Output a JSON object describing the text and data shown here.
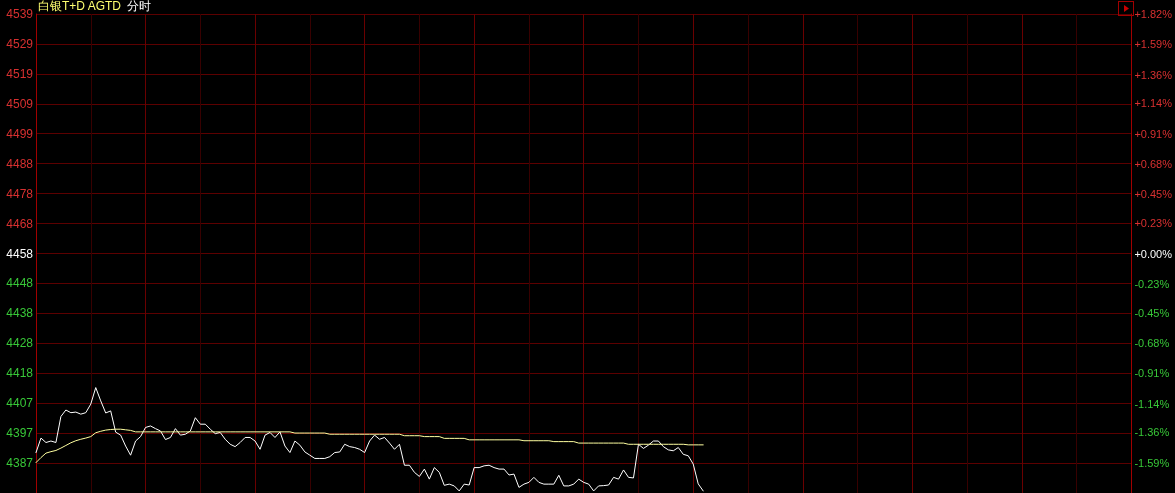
{
  "chart_data": {
    "type": "line",
    "title": "白银T+D AGTD",
    "subtitle": "分时",
    "categories": [
      null,
      null,
      null,
      null,
      null,
      null,
      null,
      null,
      null,
      null,
      null,
      null,
      null,
      null,
      null,
      null,
      null,
      null,
      null,
      null,
      null,
      null,
      null,
      null,
      null,
      null,
      null,
      null,
      null,
      null,
      null,
      null,
      null,
      null,
      null,
      null,
      null,
      null,
      null,
      null,
      null,
      null,
      null,
      null,
      null,
      null,
      null,
      null,
      null,
      null,
      null,
      null,
      null,
      null,
      null,
      null,
      null,
      null,
      null,
      null,
      null,
      null,
      null,
      null,
      null,
      null,
      null,
      null,
      null,
      null,
      null,
      null,
      null,
      null,
      null,
      null,
      null,
      null,
      null,
      null,
      null,
      null,
      null,
      null,
      null,
      null,
      null,
      null,
      null,
      null,
      null,
      null,
      null,
      null,
      null,
      null,
      null,
      null,
      null,
      null,
      null,
      null,
      null,
      null,
      null,
      null,
      null,
      null,
      null,
      null,
      null,
      null,
      null,
      null,
      null,
      null,
      null,
      null,
      null,
      null,
      null,
      null,
      null,
      null,
      null,
      null,
      null,
      null,
      null,
      null,
      null,
      null,
      null,
      null,
      null,
      null,
      null,
      null,
      null,
      null,
      null,
      null,
      null,
      null,
      null,
      null,
      null,
      null,
      null,
      null,
      null,
      null,
      null,
      null,
      null,
      null,
      null,
      null,
      null,
      null,
      null,
      null,
      null,
      null,
      null,
      null,
      null,
      null,
      null,
      null,
      null,
      null,
      null,
      null,
      null,
      null,
      null,
      null,
      null,
      null,
      null,
      null,
      null,
      null,
      null,
      null,
      null,
      null,
      null,
      null,
      null,
      null,
      null,
      null,
      null,
      null,
      null,
      null,
      null,
      null,
      null,
      null,
      null,
      null,
      null,
      null,
      null,
      null,
      null,
      null,
      null,
      null,
      null,
      null,
      null,
      null,
      null,
      null,
      null,
      null,
      null
    ],
    "series": [
      {
        "color": "#ffffff",
        "values": [
          4390.6,
          4395.5,
          4394.0,
          4394.5,
          4394.0,
          4402.8,
          4405.0,
          4404.1,
          4404.3,
          4403.6,
          4404.1,
          4407.0,
          4412.6,
          4408.1,
          4404.0,
          4404.7,
          4397.5,
          4396.5,
          4392.8,
          4389.7,
          4394.5,
          4396.0,
          4399.1,
          4399.6,
          4398.7,
          4397.9,
          4395.0,
          4395.7,
          4398.7,
          4396.5,
          4396.8,
          4397.9,
          4402.4,
          4400.2,
          4400.2,
          4398.5,
          4397.0,
          4397.4,
          4395.1,
          4393.4,
          4392.6,
          4394.0,
          4395.7,
          4395.7,
          4394.5,
          4391.7,
          4396.5,
          4397.4,
          4395.7,
          4397.6,
          4392.8,
          4390.6,
          4394.5,
          4393.1,
          4390.8,
          4389.7,
          4388.6,
          4388.6,
          4388.6,
          4389.2,
          4390.6,
          4390.8,
          4393.4,
          4392.6,
          4392.3,
          4391.7,
          4390.6,
          4394.5,
          4396.5,
          4395.1,
          4395.7,
          4393.8,
          4391.7,
          4393.4,
          4386.3,
          4386.3,
          4383.9,
          4382.5,
          4385.0,
          4381.6,
          4385.5,
          4383.9,
          4379.5,
          4379.9,
          4379.3,
          4377.6,
          4379.9,
          4379.6,
          4385.5,
          4385.5,
          4386.1,
          4386.3,
          4385.5,
          4385.0,
          4385.0,
          4383.0,
          4383.3,
          4378.8,
          4379.9,
          4380.5,
          4382.2,
          4380.5,
          4379.9,
          4379.9,
          4379.9,
          4382.9,
          4379.3,
          4379.3,
          4379.9,
          4381.6,
          4380.5,
          4379.9,
          4377.6,
          4379.3,
          4379.4,
          4379.6,
          4382.2,
          4381.6,
          4384.7,
          4382.2,
          4382.0,
          4393.4,
          4392.0,
          4393.1,
          4394.5,
          4394.5,
          4392.6,
          4391.5,
          4391.2,
          4392.3,
          4390.0,
          4389.5,
          4386.7,
          4380.0,
          4377.6,
          null,
          null,
          null,
          null,
          null,
          null,
          null,
          null,
          null,
          null,
          null,
          null,
          null,
          null,
          null,
          null,
          null,
          null,
          null,
          null,
          null,
          null,
          null,
          null,
          null,
          null,
          null,
          null,
          null,
          null,
          null,
          null,
          null,
          null,
          null,
          null,
          null,
          null,
          null,
          null,
          null,
          null,
          null,
          null,
          null,
          null,
          null,
          null,
          null,
          null,
          null,
          null,
          null,
          null,
          null,
          null,
          null,
          null,
          null,
          null,
          null,
          null,
          null,
          null,
          null,
          null,
          null,
          null,
          null,
          null,
          null,
          null,
          null,
          null,
          null,
          null,
          null,
          null,
          null,
          null,
          null,
          null,
          null,
          null,
          null,
          null
        ]
      },
      {
        "color": "#ffffa0",
        "values": [
          4387.2,
          4388.9,
          4390.4,
          4390.9,
          4391.3,
          4392.1,
          4393.0,
          4393.9,
          4394.6,
          4395.1,
          4395.5,
          4396.0,
          4397.3,
          4397.8,
          4398.2,
          4398.4,
          4398.5,
          4398.5,
          4398.3,
          4398.1,
          4397.6,
          4397.6,
          4397.6,
          4397.6,
          4397.6,
          4397.6,
          4397.6,
          4397.6,
          4397.6,
          4397.6,
          4397.6,
          4397.6,
          4397.6,
          4397.6,
          4397.6,
          4397.6,
          4397.6,
          4397.6,
          4397.6,
          4397.6,
          4397.6,
          4397.6,
          4397.6,
          4397.6,
          4397.6,
          4397.6,
          4397.6,
          4397.6,
          4397.6,
          4397.6,
          4397.6,
          4397.6,
          4397.2,
          4397.2,
          4397.2,
          4397.2,
          4397.2,
          4397.2,
          4397.2,
          4396.8,
          4396.8,
          4396.8,
          4396.8,
          4396.8,
          4396.8,
          4396.8,
          4396.8,
          4396.8,
          4396.8,
          4396.8,
          4396.8,
          4396.8,
          4396.8,
          4396.8,
          4396.3,
          4396.3,
          4396.3,
          4396.3,
          4396.0,
          4396.0,
          4396.0,
          4396.0,
          4395.4,
          4395.4,
          4395.4,
          4395.4,
          4395.4,
          4394.9,
          4394.9,
          4394.9,
          4394.9,
          4394.9,
          4394.9,
          4394.9,
          4394.9,
          4394.9,
          4394.9,
          4394.9,
          4394.6,
          4394.6,
          4394.6,
          4394.6,
          4394.6,
          4394.6,
          4394.3,
          4394.3,
          4394.3,
          4394.3,
          4394.3,
          4393.8,
          4393.8,
          4393.8,
          4393.8,
          4393.8,
          4393.8,
          4393.8,
          4393.8,
          4393.8,
          4393.8,
          4393.4,
          4393.4,
          4393.4,
          4393.4,
          4393.4,
          4393.4,
          4393.4,
          4393.4,
          4393.4,
          4393.4,
          4393.4,
          4393.4,
          4393.2,
          4393.2,
          4393.2,
          4393.2,
          null,
          null,
          null,
          null,
          null,
          null,
          null,
          null,
          null,
          null,
          null,
          null,
          null,
          null,
          null,
          null,
          null,
          null,
          null,
          null,
          null,
          null,
          null,
          null,
          null,
          null,
          null,
          null,
          null,
          null,
          null,
          null,
          null,
          null,
          null,
          null,
          null,
          null,
          null,
          null,
          null,
          null,
          null,
          null,
          null,
          null,
          null,
          null,
          null,
          null,
          null,
          null,
          null,
          null,
          null,
          null,
          null,
          null,
          null,
          null,
          null,
          null,
          null,
          null,
          null,
          null,
          null,
          null,
          null,
          null,
          null,
          null,
          null,
          null,
          null,
          null,
          null,
          null,
          null,
          null,
          null,
          null,
          null,
          null,
          null,
          null
        ]
      }
    ],
    "ylim": [
      4376.9,
      4539.1
    ],
    "yticks": [
      {
        "value": 4387.0,
        "label": "4387"
      },
      {
        "value": 4397.2,
        "label": "4397"
      },
      {
        "value": 4407.3,
        "label": "4407"
      },
      {
        "value": 4417.6,
        "label": "4418"
      },
      {
        "value": 4427.6,
        "label": "4428"
      },
      {
        "value": 4437.7,
        "label": "4438"
      },
      {
        "value": 4447.9,
        "label": "4448"
      },
      {
        "value": 4458,
        "label": "4458"
      },
      {
        "value": 4468.1,
        "label": "4468"
      },
      {
        "value": 4478.3,
        "label": "4478"
      },
      {
        "value": 4488.4,
        "label": "4488"
      },
      {
        "value": 4498.6,
        "label": "4499"
      },
      {
        "value": 4508.7,
        "label": "4509"
      },
      {
        "value": 4518.8,
        "label": "4519"
      },
      {
        "value": 4529.0,
        "label": "4529"
      },
      {
        "value": 4539.1,
        "label": "4539"
      }
    ],
    "y2lim": [
      -1.82,
      1.82
    ],
    "y2ticks": [
      {
        "value": -1.59,
        "label": "-1.59%"
      },
      {
        "value": -1.36,
        "label": "-1.36%"
      },
      {
        "value": -1.14,
        "label": "-1.14%"
      },
      {
        "value": -0.91,
        "label": "-0.91%"
      },
      {
        "value": -0.68,
        "label": "-0.68%"
      },
      {
        "value": -0.45,
        "label": "-0.45%"
      },
      {
        "value": -0.23,
        "label": "-0.23%"
      },
      {
        "value": 0,
        "label": "+0.00%"
      },
      {
        "value": 0.23,
        "label": "+0.23%"
      },
      {
        "value": 0.45,
        "label": "+0.45%"
      },
      {
        "value": 0.68,
        "label": "+0.68%"
      },
      {
        "value": 0.91,
        "label": "+0.91%"
      },
      {
        "value": 1.14,
        "label": "+1.14%"
      },
      {
        "value": 1.36,
        "label": "+1.36%"
      },
      {
        "value": 1.59,
        "label": "+1.59%"
      },
      {
        "value": 1.82,
        "label": "+1.82%"
      }
    ],
    "grid": true,
    "tick_labels": "y"
  }
}
